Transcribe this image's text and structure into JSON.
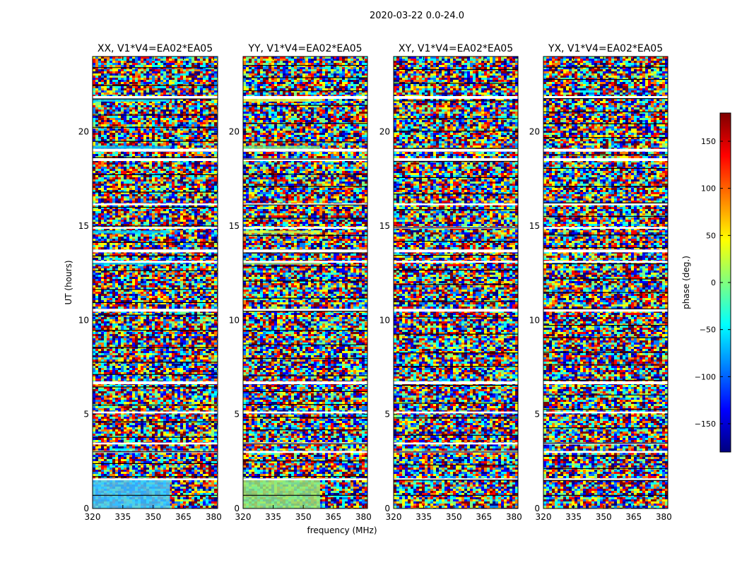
{
  "chart_data": {
    "type": "heatmap",
    "title": "2020-03-22 0.0-24.0",
    "xlabel": "frequency (MHz)",
    "ylabel": "UT (hours)",
    "xlim": [
      320,
      382
    ],
    "ylim": [
      0,
      24
    ],
    "x_ticks": [
      "320",
      "335",
      "350",
      "365",
      "380"
    ],
    "y_ticks": [
      "0",
      "5",
      "10",
      "15",
      "20"
    ],
    "panels": [
      {
        "title": "XX, V1*V4=EA02*EA05",
        "pol": "XX"
      },
      {
        "title": "YY, V1*V4=EA02*EA05",
        "pol": "YY"
      },
      {
        "title": "XY, V1*V4=EA02*EA05",
        "pol": "XY"
      },
      {
        "title": "YX, V1*V4=EA02*EA05",
        "pol": "YX"
      }
    ],
    "colorbar": {
      "label": "phase (deg.)",
      "range": [
        -180,
        180
      ],
      "ticks": [
        "150",
        "100",
        "50",
        "0",
        "−50",
        "−100",
        "−150"
      ],
      "colormap": [
        "#00007f",
        "#0000ff",
        "#007fff",
        "#00ffff",
        "#7fff7f",
        "#ffff00",
        "#ff7f00",
        "#ff0000",
        "#7f0000"
      ]
    },
    "flagged_bands_ut": [
      [
        21.75,
        21.9
      ],
      [
        18.95,
        19.1
      ],
      [
        18.45,
        18.6
      ],
      [
        16.1,
        16.2
      ],
      [
        14.85,
        14.95
      ],
      [
        13.6,
        13.75
      ],
      [
        13.05,
        13.15
      ],
      [
        10.45,
        10.6
      ],
      [
        6.6,
        6.75
      ],
      [
        5.05,
        5.15
      ],
      [
        3.4,
        3.5
      ],
      [
        2.95,
        3.05
      ],
      [
        1.5,
        1.6
      ]
    ]
  }
}
